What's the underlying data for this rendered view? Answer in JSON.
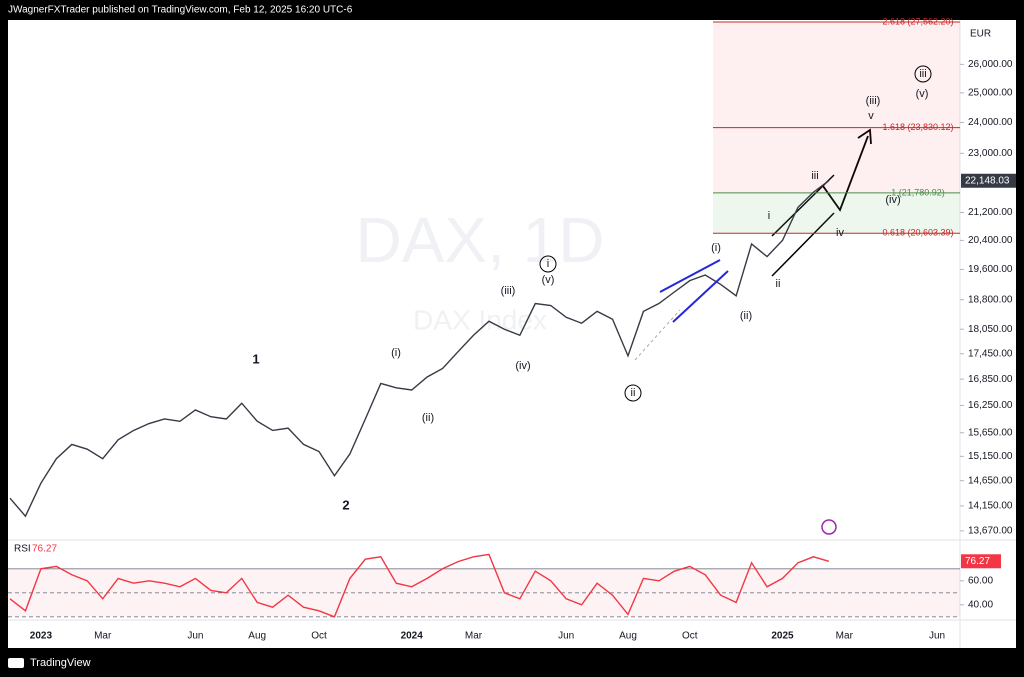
{
  "header": {
    "publisher": "JWagnerFXTrader published on TradingView.com, Feb 12, 2025 16:20 UTC-6"
  },
  "footer": {
    "brand": "TradingView"
  },
  "chart_data": [
    {
      "type": "line",
      "watermark": "DAX, 1D",
      "watermark_sub": "DAX Index",
      "currency": "EUR",
      "log_scale": true,
      "grid": false,
      "color": "#363a45",
      "categories": [
        null,
        null,
        "2023",
        null,
        null,
        null,
        "Mar",
        null,
        null,
        null,
        null,
        null,
        "Jun",
        null,
        null,
        null,
        "Aug",
        null,
        null,
        null,
        "Oct",
        null,
        null,
        null,
        null,
        null,
        "2024",
        null,
        null,
        null,
        "Mar",
        null,
        null,
        null,
        null,
        null,
        "Jun",
        null,
        null,
        null,
        "Aug",
        null,
        null,
        null,
        "Oct",
        null,
        null,
        null,
        null,
        null,
        "2025",
        null,
        null,
        null,
        "Mar",
        null,
        null,
        null,
        null,
        null,
        "Jun",
        null
      ],
      "values": [
        14300,
        13950,
        14600,
        15100,
        15400,
        15300,
        15100,
        15500,
        15700,
        15850,
        15950,
        15900,
        16150,
        16000,
        15950,
        16300,
        15900,
        15700,
        15750,
        15400,
        15250,
        14750,
        15200,
        15950,
        16750,
        16650,
        16600,
        16900,
        17100,
        17500,
        17900,
        18250,
        18050,
        17900,
        18700,
        18650,
        18350,
        18200,
        18500,
        18300,
        17400,
        18500,
        18700,
        19000,
        19300,
        19450,
        19200,
        18900,
        20300,
        19950,
        20400,
        21350,
        21800,
        22148.03,
        null,
        null,
        null,
        null,
        null,
        null,
        null,
        null
      ],
      "last_price": {
        "value": 22148.03,
        "label": "22,148.03"
      },
      "ylim": [
        13500,
        27640
      ],
      "yticks": [
        {
          "value": 13670,
          "label": "13,670.00"
        },
        {
          "value": 14150,
          "label": "14,150.00"
        },
        {
          "value": 14650,
          "label": "14,650.00"
        },
        {
          "value": 15150,
          "label": "15,150.00"
        },
        {
          "value": 15650,
          "label": "15,650.00"
        },
        {
          "value": 16250,
          "label": "16,250.00"
        },
        {
          "value": 16850,
          "label": "16,850.00"
        },
        {
          "value": 17450,
          "label": "17,450.00"
        },
        {
          "value": 18050,
          "label": "18,050.00"
        },
        {
          "value": 18800,
          "label": "18,800.00"
        },
        {
          "value": 19600,
          "label": "19,600.00"
        },
        {
          "value": 20400,
          "label": "20,400.00"
        },
        {
          "value": 21200,
          "label": "21,200.00"
        },
        {
          "value": 23000,
          "label": "23,000.00"
        },
        {
          "value": 24000,
          "label": "24,000.00"
        },
        {
          "value": 25000,
          "label": "25,000.00"
        },
        {
          "value": 26000,
          "label": "26,000.00"
        }
      ],
      "fib_levels": [
        {
          "value": 27562.2,
          "label": "2.618 (27,562.20)"
        },
        {
          "value": 23830.12,
          "label": "1.618 (23,830.12)"
        },
        {
          "value": 21780.92,
          "label": "1 (21,780.92)"
        },
        {
          "value": 20603.39,
          "label": "0.618 (20,603.39)"
        }
      ],
      "annotations": [
        {
          "text": "1",
          "circled": false
        },
        {
          "text": "2",
          "circled": false
        },
        {
          "text": "(i)",
          "circled": false
        },
        {
          "text": "(ii)",
          "circled": false
        },
        {
          "text": "(iii)",
          "circled": false
        },
        {
          "text": "(iv)",
          "circled": false
        },
        {
          "text": "(v)",
          "circled": false
        },
        {
          "text": "i",
          "circled": true
        },
        {
          "text": "ii",
          "circled": true
        },
        {
          "text": "(i)",
          "circled": false
        },
        {
          "text": "(ii)",
          "circled": false
        },
        {
          "text": "i",
          "circled": false
        },
        {
          "text": "ii",
          "circled": false
        },
        {
          "text": "iii",
          "circled": false
        },
        {
          "text": "iv",
          "circled": false
        },
        {
          "text": "(iv)",
          "circled": false
        },
        {
          "text": "(iii)",
          "circled": false
        },
        {
          "text": "v",
          "circled": false
        },
        {
          "text": "(v)",
          "circled": false
        },
        {
          "text": "iii",
          "circled": true
        }
      ]
    },
    {
      "type": "line",
      "title": "RSI",
      "color": "#f23645",
      "values": [
        45,
        35,
        70,
        72,
        65,
        60,
        45,
        62,
        58,
        60,
        58,
        55,
        62,
        52,
        50,
        62,
        42,
        38,
        48,
        38,
        35,
        30,
        62,
        78,
        80,
        58,
        55,
        62,
        70,
        76,
        80,
        82,
        50,
        45,
        68,
        60,
        45,
        40,
        58,
        48,
        32,
        62,
        60,
        68,
        72,
        65,
        48,
        42,
        75,
        55,
        62,
        75,
        80,
        76.27,
        null,
        null,
        null,
        null,
        null,
        null,
        null,
        null
      ],
      "ylim": [
        29,
        94
      ],
      "yticks": [
        {
          "value": 40,
          "label": "40.00"
        },
        {
          "value": 60,
          "label": "60.00"
        }
      ],
      "levels": [
        70,
        50,
        30
      ]
    }
  ]
}
